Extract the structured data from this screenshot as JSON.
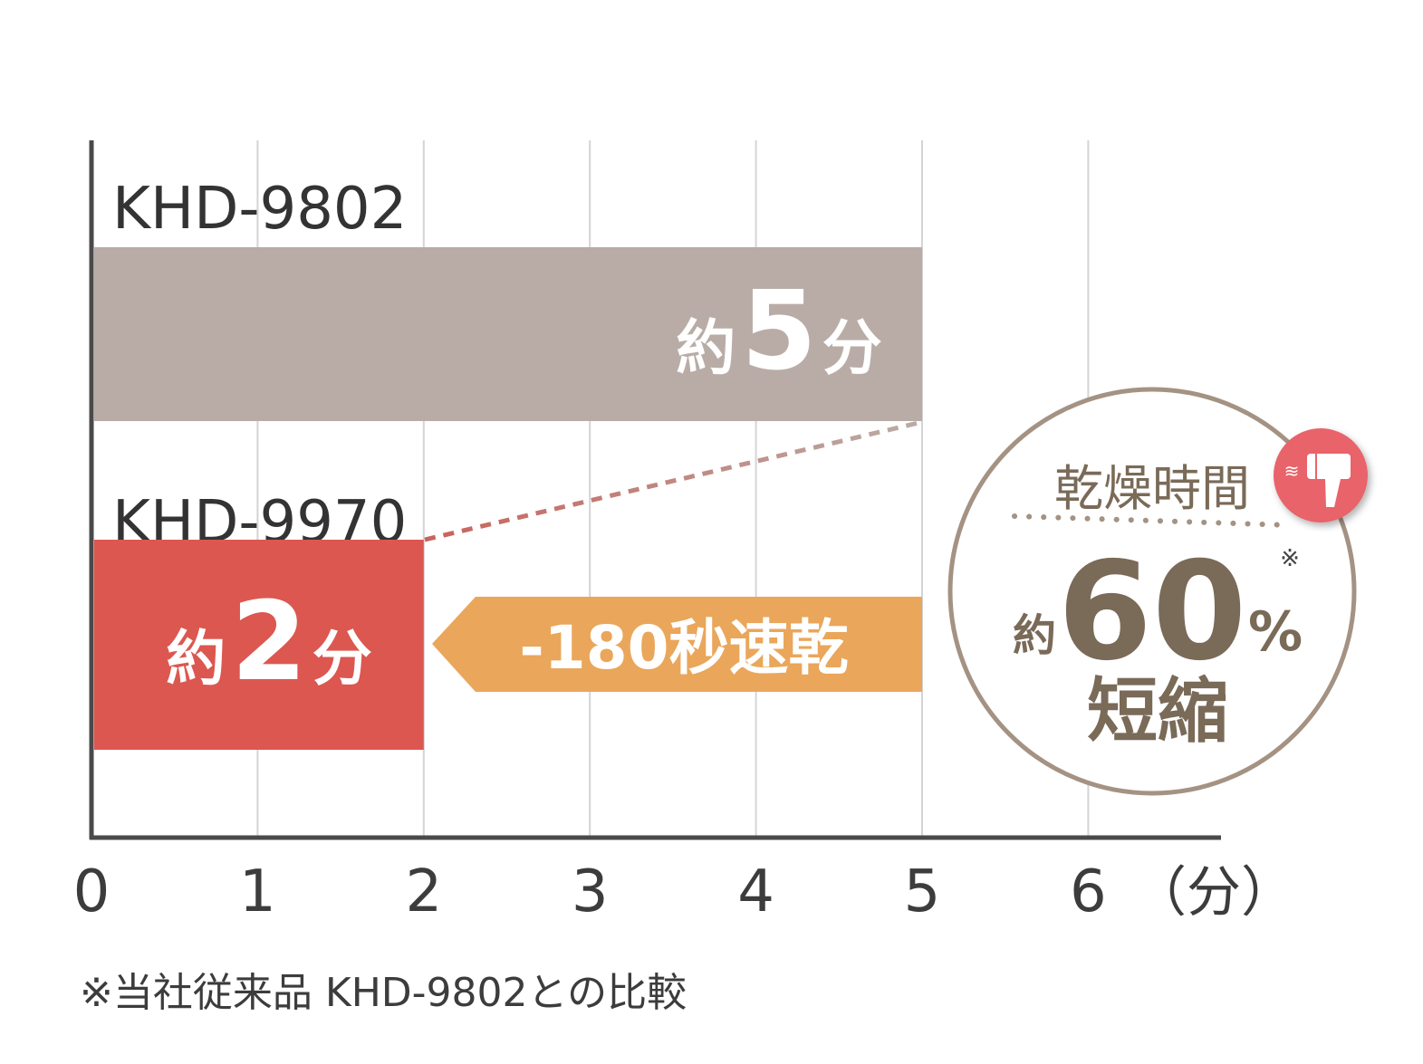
{
  "chart_data": {
    "type": "bar",
    "orientation": "horizontal",
    "categories": [
      "KHD-9802",
      "KHD-9970"
    ],
    "values": [
      5,
      2
    ],
    "data_labels": [
      {
        "prefix": "約",
        "value": "5",
        "unit": "分"
      },
      {
        "prefix": "約",
        "value": "2",
        "unit": "分"
      }
    ],
    "xlim": [
      0,
      6
    ],
    "x_ticks": [
      "0",
      "1",
      "2",
      "3",
      "4",
      "5",
      "6"
    ],
    "x_unit_label": "（分）",
    "grid": true,
    "colors": {
      "KHD-9802": "#b9aca6",
      "KHD-9970": "#dc5750",
      "arrow": "#eaa65a",
      "badge": "#a49283",
      "badge_text": "#7a6a58",
      "icon": "#e9636b",
      "axis": "#4a4a4a"
    },
    "annotation_arrow": "-180秒速乾",
    "badge": {
      "title": "乾燥時間",
      "prefix": "約",
      "value": "60",
      "unit": "%",
      "note_mark": "※",
      "suffix": "短縮",
      "icon": "hair-dryer-icon"
    }
  },
  "footnote": "※当社従来品 KHD-9802との比較"
}
